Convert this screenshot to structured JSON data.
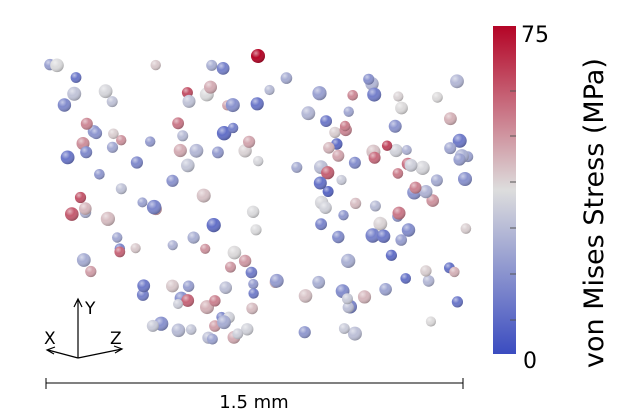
{
  "colorbar": {
    "title": "von Mises Stress (MPa)",
    "max_label": "75",
    "min_label": "0",
    "range": [
      0,
      75
    ],
    "colors": {
      "low": "#3b4cc0",
      "mid": "#dddddd",
      "high": "#b40426"
    }
  },
  "triad": {
    "y_label": "Y",
    "x_label": "X",
    "z_label": "Z"
  },
  "scale_bar": {
    "label": "1.5 mm"
  },
  "particles": {
    "description_values_mpa": [
      12,
      18,
      30,
      22,
      9,
      45,
      55,
      38,
      15,
      28,
      60,
      20,
      33,
      11,
      40,
      25,
      52,
      19,
      8,
      35,
      27,
      44,
      14,
      31,
      58,
      21,
      37,
      10,
      48,
      26,
      17,
      42,
      29,
      13,
      50,
      24,
      36,
      16,
      46,
      23,
      7,
      39,
      32,
      54,
      20,
      28,
      12,
      41,
      34,
      18,
      57,
      22,
      30,
      9,
      47,
      26,
      38,
      15,
      43,
      25,
      11,
      49,
      29,
      35,
      19,
      53,
      24,
      40,
      14,
      31,
      62,
      21,
      36,
      10,
      45,
      27,
      33,
      17,
      51,
      23,
      75,
      44,
      16,
      37,
      28,
      13,
      56,
      30,
      20,
      42,
      26,
      34,
      12,
      48,
      22,
      39,
      18,
      59,
      25,
      31,
      15,
      46,
      29,
      36,
      10,
      52,
      24,
      41,
      19,
      33,
      27,
      43,
      14,
      50,
      21,
      38,
      17,
      55,
      26,
      32,
      11,
      47,
      23,
      40,
      30,
      64,
      18,
      35,
      28,
      44,
      13,
      49,
      22,
      37,
      16,
      53,
      25,
      31,
      20,
      42,
      9,
      46,
      27,
      34,
      15,
      58,
      24,
      39,
      19,
      45,
      29,
      36,
      12,
      50,
      21,
      41,
      17,
      54,
      26,
      33,
      14,
      48,
      23,
      38,
      28,
      61,
      18,
      43,
      30,
      35,
      11,
      52,
      25,
      40,
      16,
      47,
      22,
      37,
      20,
      44
    ]
  }
}
